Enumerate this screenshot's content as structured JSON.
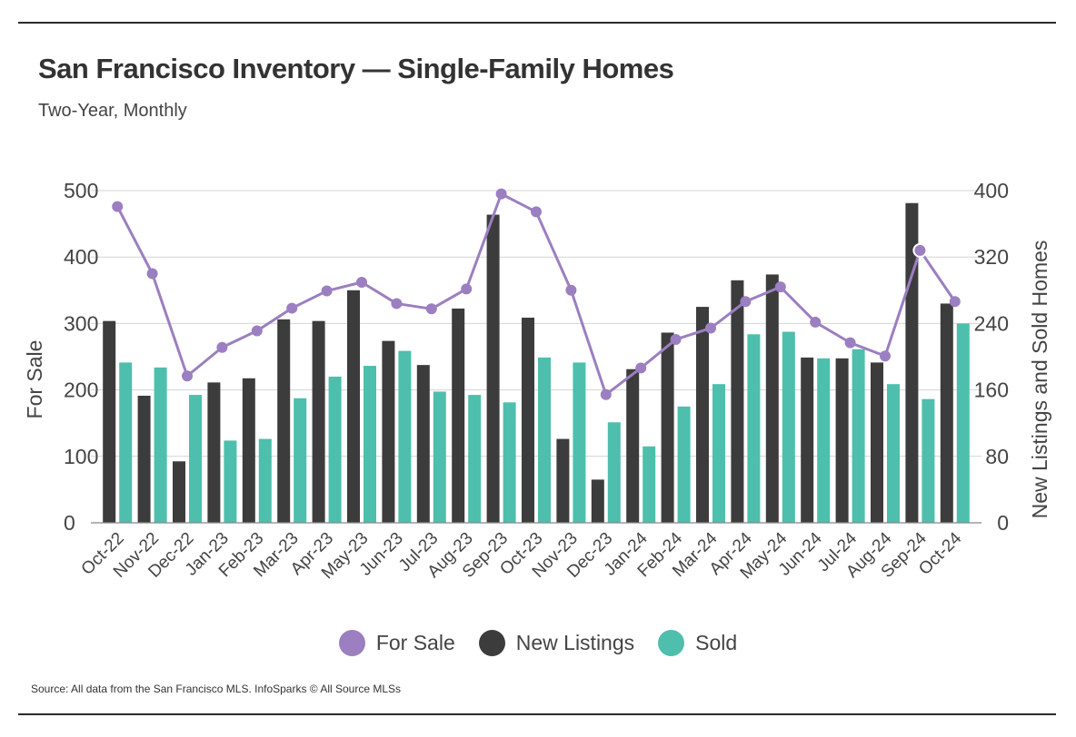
{
  "header": {
    "title": "San Francisco Inventory — Single-Family Homes",
    "subtitle": "Two-Year, Monthly"
  },
  "footer": {
    "source": "Source:  All data from the San Francisco MLS. InfoSparks © All Source MLSs"
  },
  "colors": {
    "for_sale": "#9b7fc0",
    "new_listings": "#3c3c3c",
    "sold": "#4dbfac",
    "grid": "#d4d4d4",
    "axis": "#888888"
  },
  "chart_data": {
    "type": "bar",
    "categories": [
      "Oct-22",
      "Nov-22",
      "Dec-22",
      "Jan-23",
      "Feb-23",
      "Mar-23",
      "Apr-23",
      "May-23",
      "Jun-23",
      "Jul-23",
      "Aug-23",
      "Sep-23",
      "Oct-23",
      "Nov-23",
      "Dec-23",
      "Jan-24",
      "Feb-24",
      "Mar-24",
      "Apr-24",
      "May-24",
      "Jun-24",
      "Jul-24",
      "Aug-24",
      "Sep-24",
      "Oct-24"
    ],
    "series": [
      {
        "name": "New Listings",
        "type": "bar",
        "axis": "right",
        "values": [
          243,
          153,
          74,
          169,
          174,
          245,
          243,
          280,
          219,
          190,
          258,
          371,
          247,
          101,
          52,
          185,
          229,
          260,
          292,
          299,
          199,
          198,
          193,
          385,
          264
        ]
      },
      {
        "name": "Sold",
        "type": "bar",
        "axis": "right",
        "values": [
          193,
          187,
          154,
          99,
          101,
          150,
          176,
          189,
          207,
          158,
          154,
          145,
          199,
          193,
          121,
          92,
          140,
          167,
          227,
          230,
          198,
          209,
          167,
          149,
          240
        ]
      },
      {
        "name": "For Sale",
        "type": "line",
        "axis": "left",
        "values": [
          476,
          375,
          221,
          264,
          289,
          323,
          349,
          362,
          330,
          322,
          352,
          495,
          468,
          350,
          193,
          233,
          276,
          293,
          333,
          355,
          302,
          271,
          251,
          410,
          333
        ]
      }
    ],
    "y_left": {
      "label": "For Sale",
      "ticks": [
        "0",
        "100",
        "200",
        "300",
        "400",
        "500"
      ],
      "range": [
        0,
        500
      ]
    },
    "y_right": {
      "label": "New Listings and Sold Homes",
      "ticks": [
        "0",
        "80",
        "160",
        "240",
        "320",
        "400"
      ],
      "range": [
        0,
        400
      ]
    },
    "grid": true,
    "legend_position": "bottom-center"
  },
  "legend": [
    {
      "label": "For Sale",
      "color": "#9b7fc0"
    },
    {
      "label": "New Listings",
      "color": "#3c3c3c"
    },
    {
      "label": "Sold",
      "color": "#4dbfac"
    }
  ]
}
